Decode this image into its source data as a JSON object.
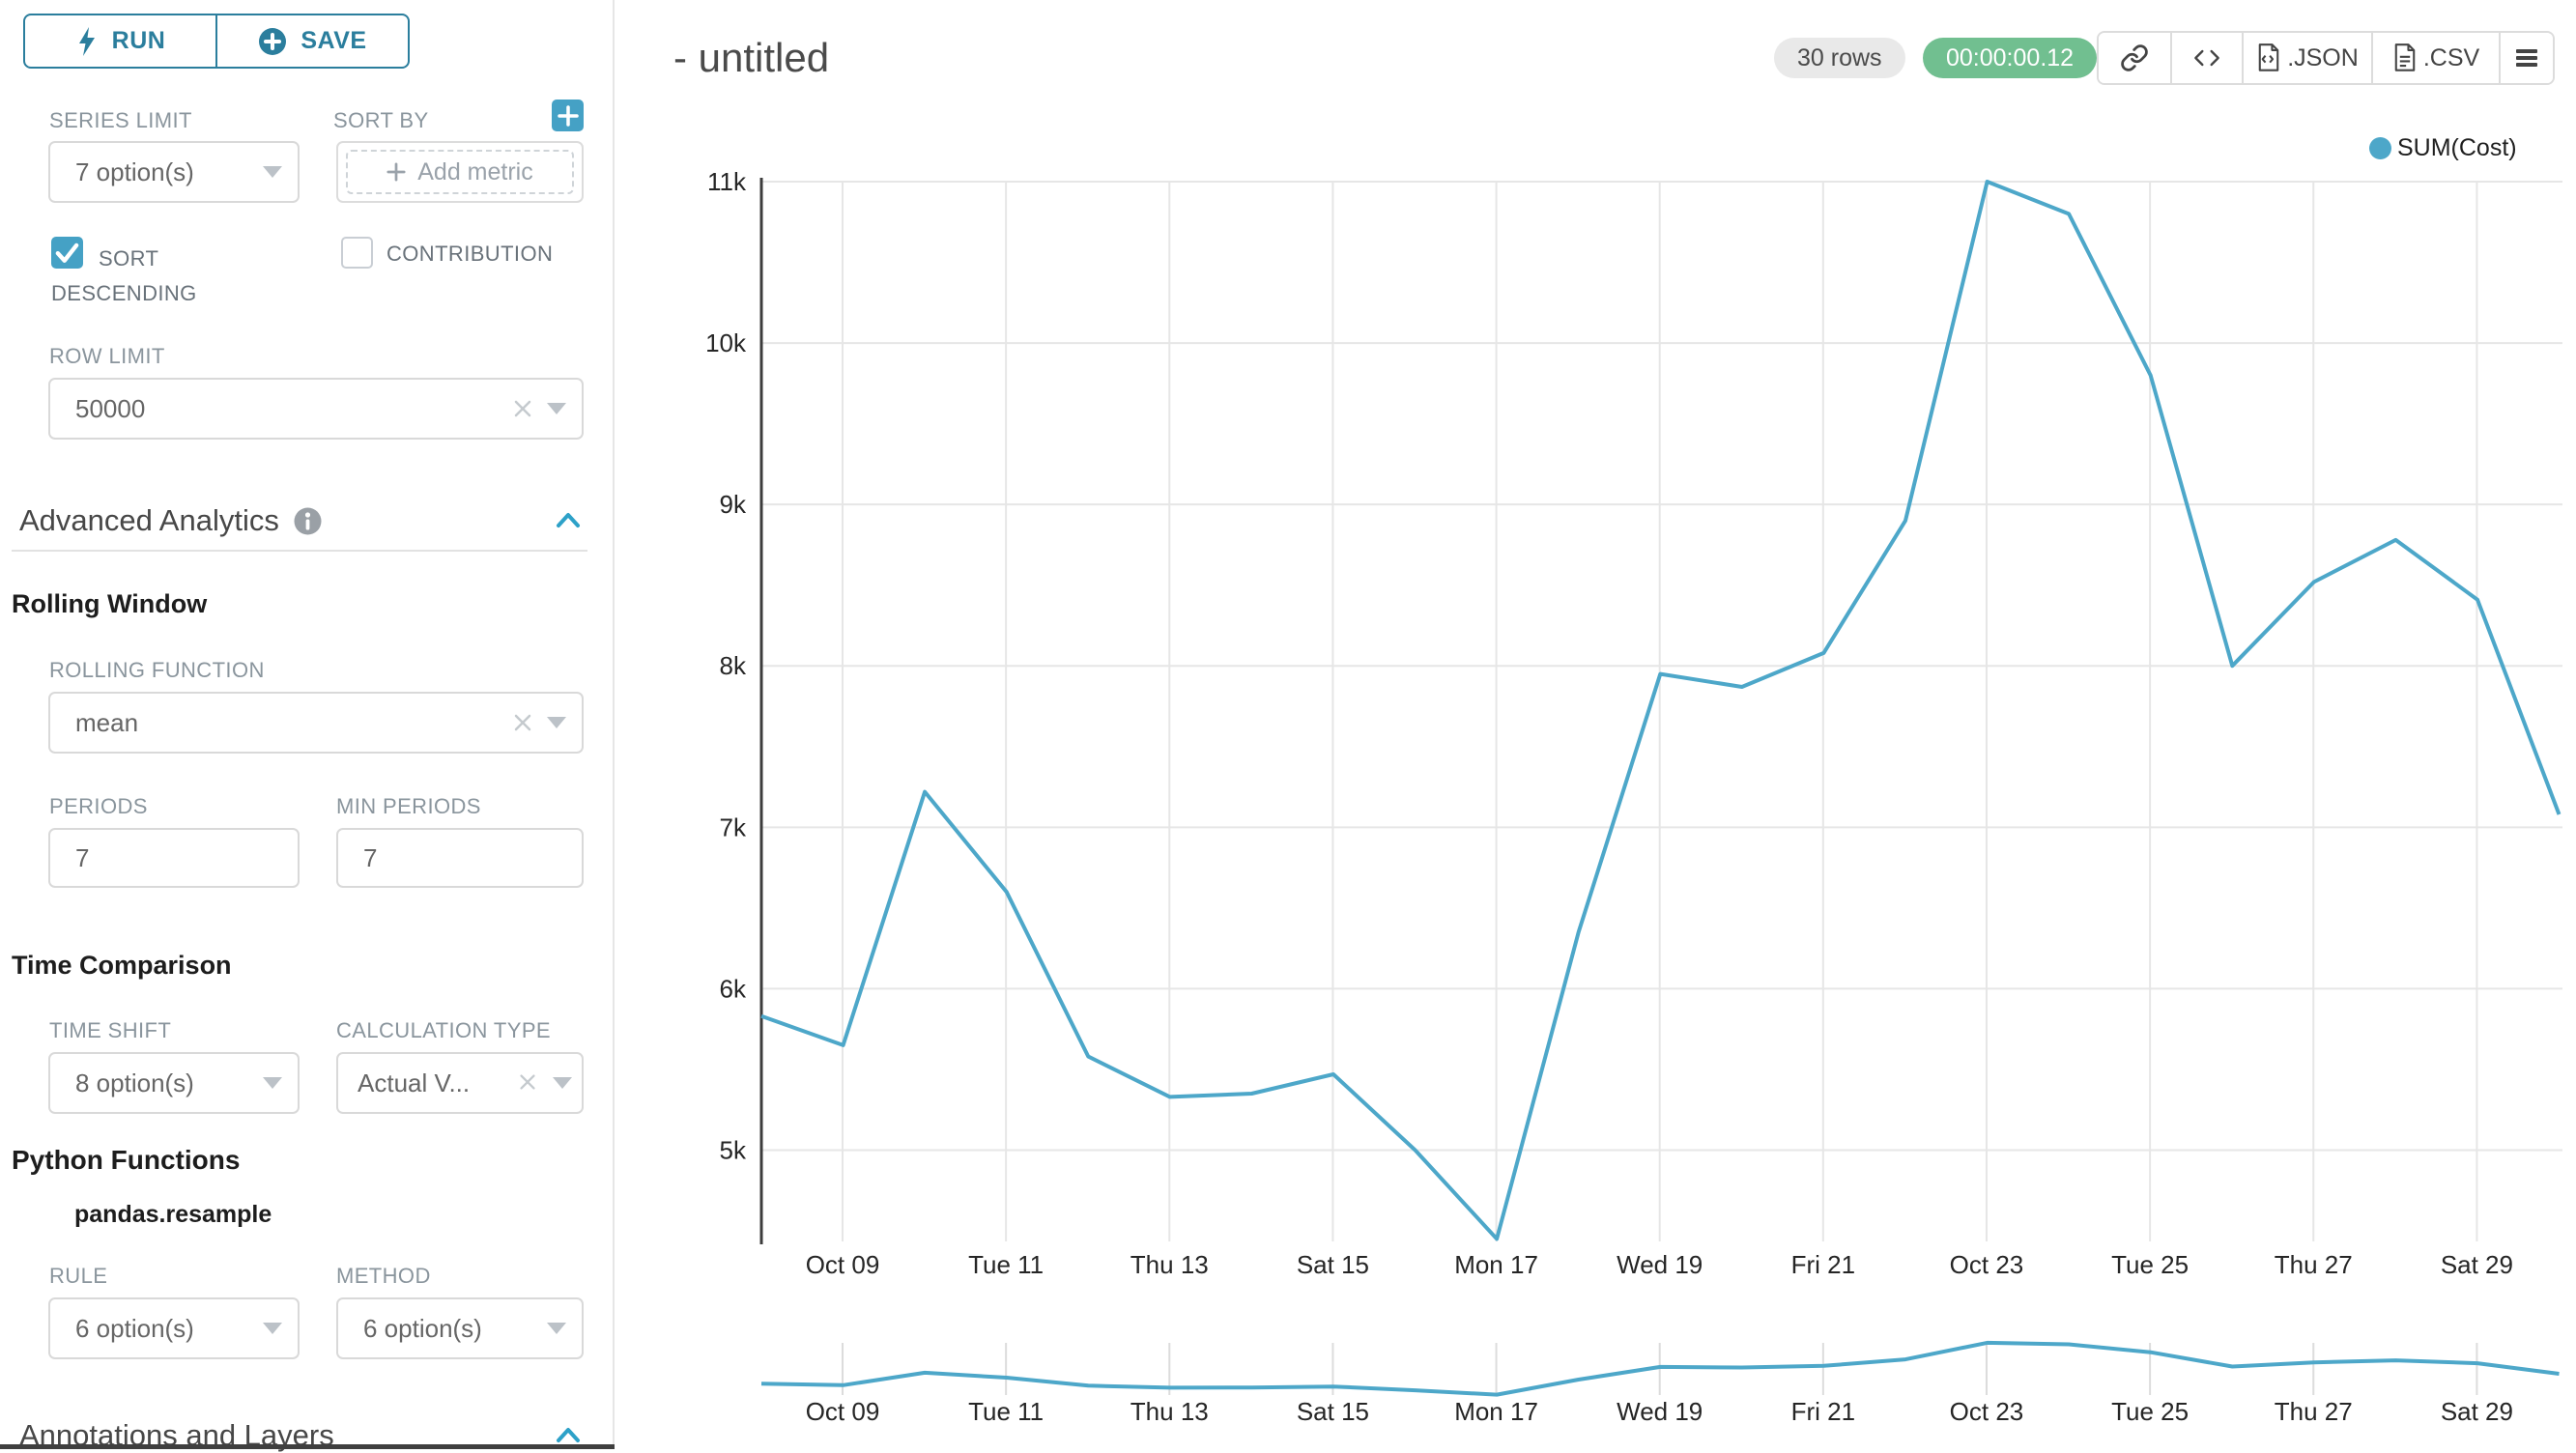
{
  "toolbar": {
    "run_label": "RUN",
    "save_label": "SAVE"
  },
  "sidebar": {
    "series_limit": {
      "label": "SERIES LIMIT",
      "value": "7 option(s)"
    },
    "sort_by": {
      "label": "SORT BY",
      "placeholder": "Add metric"
    },
    "sort_descending": {
      "label": "SORT DESCENDING",
      "checked": true
    },
    "contribution": {
      "label": "CONTRIBUTION",
      "checked": false
    },
    "row_limit": {
      "label": "ROW LIMIT",
      "value": "50000"
    },
    "advanced_analytics": {
      "title": "Advanced Analytics"
    },
    "rolling_window": {
      "title": "Rolling Window",
      "rolling_function": {
        "label": "ROLLING FUNCTION",
        "value": "mean"
      },
      "periods": {
        "label": "PERIODS",
        "value": "7"
      },
      "min_periods": {
        "label": "MIN PERIODS",
        "value": "7"
      }
    },
    "time_comparison": {
      "title": "Time Comparison",
      "time_shift": {
        "label": "TIME SHIFT",
        "value": "8 option(s)"
      },
      "calculation_type": {
        "label": "CALCULATION TYPE",
        "value": "Actual V..."
      }
    },
    "python_functions": {
      "title": "Python Functions",
      "subtitle": "pandas.resample",
      "rule": {
        "label": "RULE",
        "value": "6 option(s)"
      },
      "method": {
        "label": "METHOD",
        "value": "6 option(s)"
      }
    },
    "annotations": {
      "title": "Annotations and Layers"
    }
  },
  "header": {
    "title": "- untitled",
    "rows_badge": "30 rows",
    "timer_badge": "00:00:00.12",
    "json_label": ".JSON",
    "csv_label": ".CSV"
  },
  "chart_data": {
    "type": "line",
    "title": "",
    "legend": {
      "position": "top-right",
      "entries": [
        "SUM(Cost)"
      ]
    },
    "series": [
      {
        "name": "SUM(Cost)",
        "color": "#4DA7C9",
        "x": [
          "Oct 08",
          "Oct 09",
          "Oct 10",
          "Oct 11",
          "Oct 12",
          "Oct 13",
          "Oct 14",
          "Oct 15",
          "Oct 16",
          "Oct 17",
          "Oct 18",
          "Oct 19",
          "Oct 20",
          "Oct 21",
          "Oct 22",
          "Oct 23",
          "Oct 24",
          "Oct 25",
          "Oct 26",
          "Oct 27",
          "Oct 28",
          "Oct 29",
          "Oct 30"
        ],
        "values": [
          5830,
          5650,
          7220,
          6600,
          5580,
          5330,
          5350,
          5470,
          5000,
          4450,
          6350,
          7950,
          7870,
          8080,
          8900,
          11000,
          10800,
          9800,
          8000,
          8520,
          8780,
          8410,
          7080
        ]
      }
    ],
    "x_tick_labels": [
      "Oct 09",
      "Tue 11",
      "Thu 13",
      "Sat 15",
      "Mon 17",
      "Wed 19",
      "Fri 21",
      "Oct 23",
      "Tue 25",
      "Thu 27",
      "Sat 29"
    ],
    "y_tick_labels": [
      "11k",
      "10k",
      "9k",
      "8k",
      "7k",
      "6k",
      "5k"
    ],
    "y_tick_values": [
      11000,
      10000,
      9000,
      8000,
      7000,
      6000,
      5000
    ],
    "ylim": [
      4400,
      11050
    ],
    "grid": true,
    "mini_preview": true
  },
  "colors": {
    "accent_teal": "#2b7e9d",
    "checkbox_teal": "#45a1c5",
    "timer_green": "#71bf90",
    "line_blue": "#4DA7C9",
    "grid_gray": "#e6e6e6",
    "axis_dark": "#3c3c3c",
    "tick_text": "#262626"
  }
}
